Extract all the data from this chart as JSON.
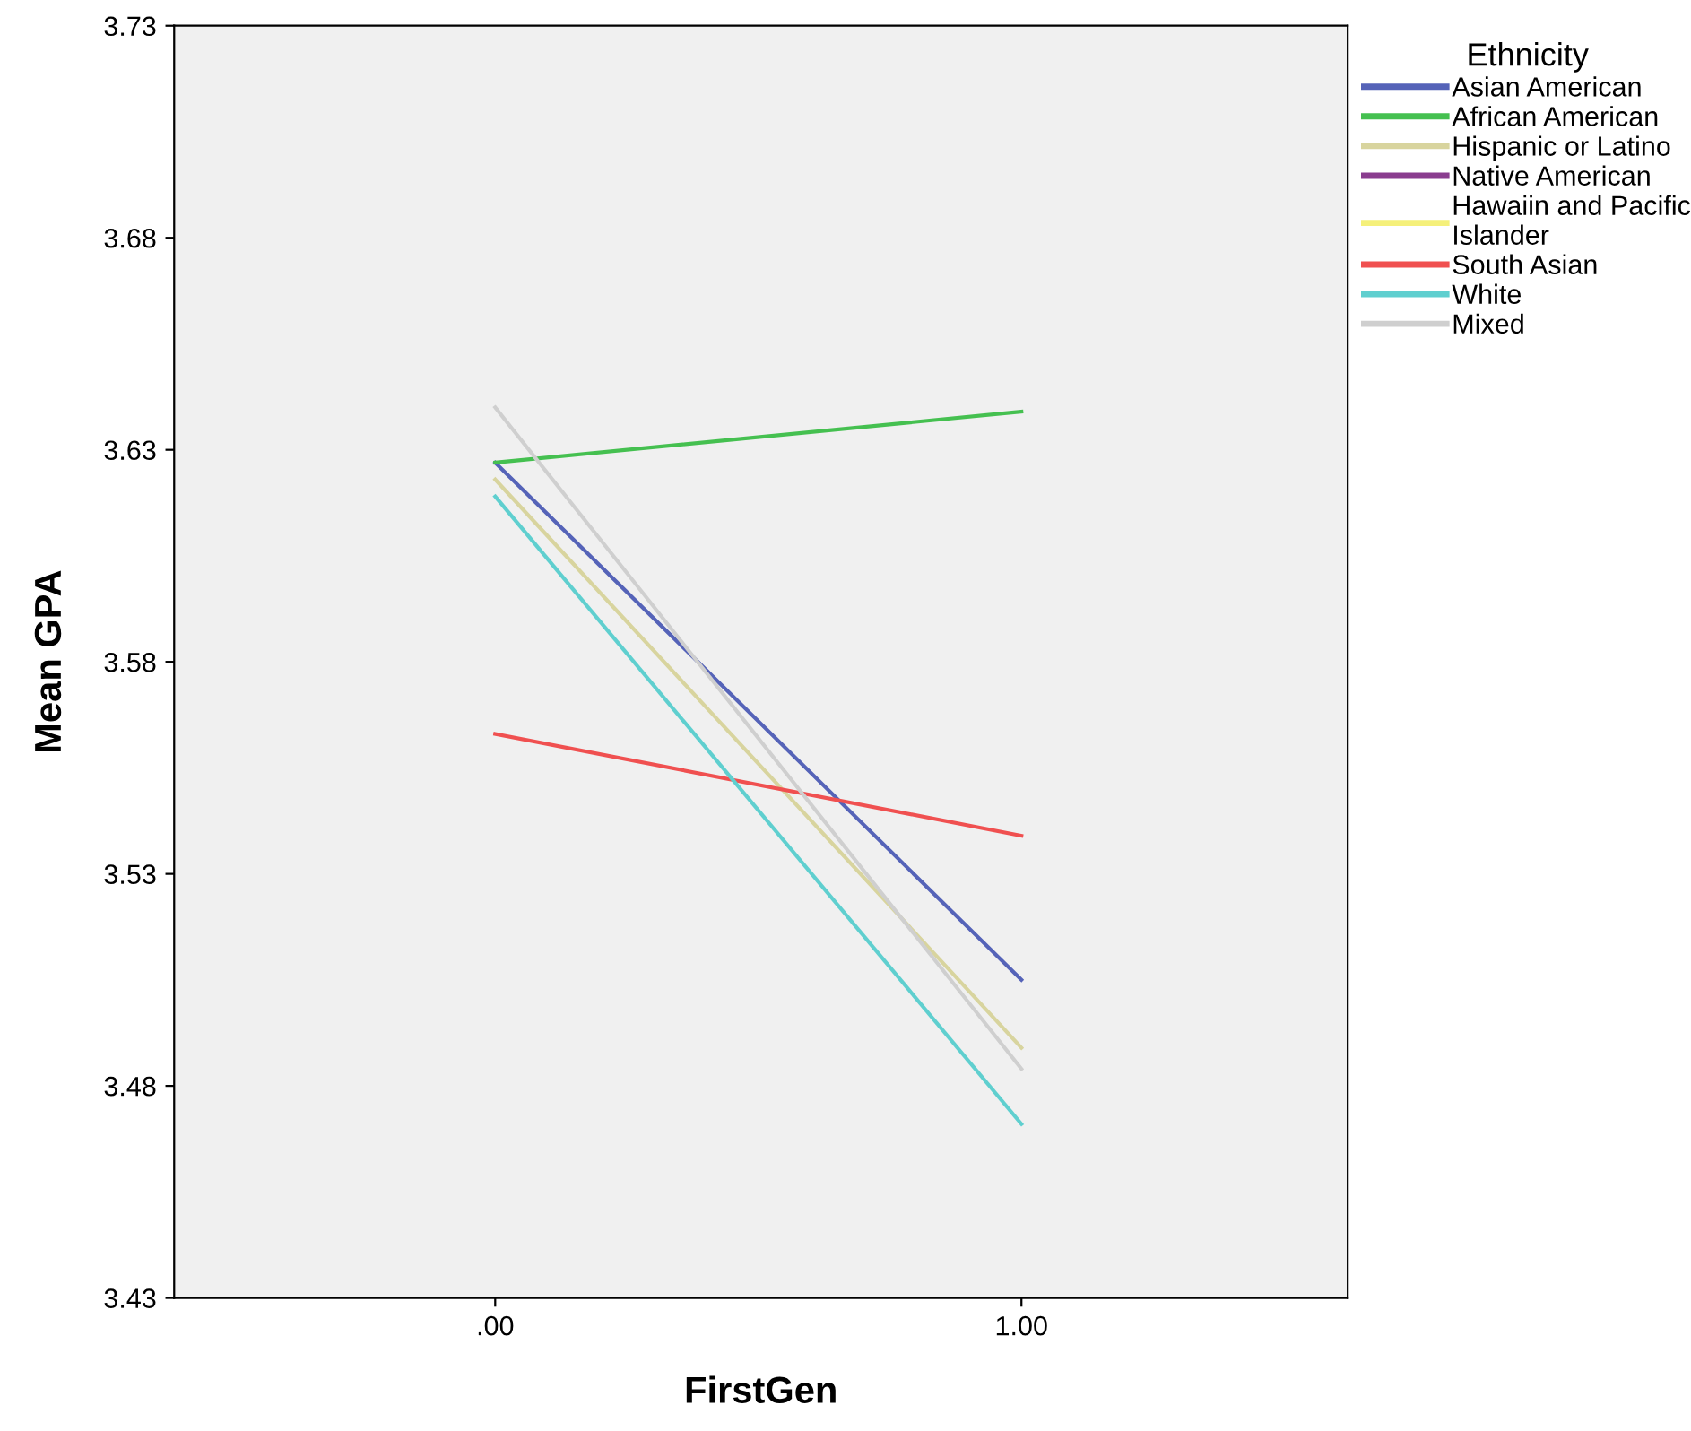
{
  "chart_data": {
    "type": "line",
    "xlabel": "FirstGen",
    "ylabel": "Mean GPA",
    "legend_title": "Ethnicity",
    "categories": [
      ".00",
      "1.00"
    ],
    "series": [
      {
        "name": "Asian American",
        "color": "#5563b8",
        "values": [
          3.627,
          3.505
        ]
      },
      {
        "name": "African American",
        "color": "#45c050",
        "values": [
          3.627,
          3.639
        ]
      },
      {
        "name": "Hispanic or Latino",
        "color": "#d8d49e",
        "values": [
          3.623,
          3.489
        ]
      },
      {
        "name": "Native American",
        "color": "#8a3d8f",
        "values": [
          null,
          null
        ]
      },
      {
        "name": "Hawaiin and Pacific\nIslander",
        "color": "#f5f07a",
        "values": [
          null,
          null
        ]
      },
      {
        "name": "South Asian",
        "color": "#f05050",
        "values": [
          3.563,
          3.539
        ]
      },
      {
        "name": "White",
        "color": "#5fcfcf",
        "values": [
          3.619,
          3.471
        ]
      },
      {
        "name": "Mixed",
        "color": "#cfcfcf",
        "values": [
          3.64,
          3.484
        ]
      }
    ],
    "ylim": [
      3.43,
      3.73
    ],
    "yticks": [
      3.43,
      3.48,
      3.53,
      3.58,
      3.63,
      3.68,
      3.73
    ],
    "grid": false,
    "legend": "right",
    "marker": "none",
    "line_style": "solid"
  }
}
